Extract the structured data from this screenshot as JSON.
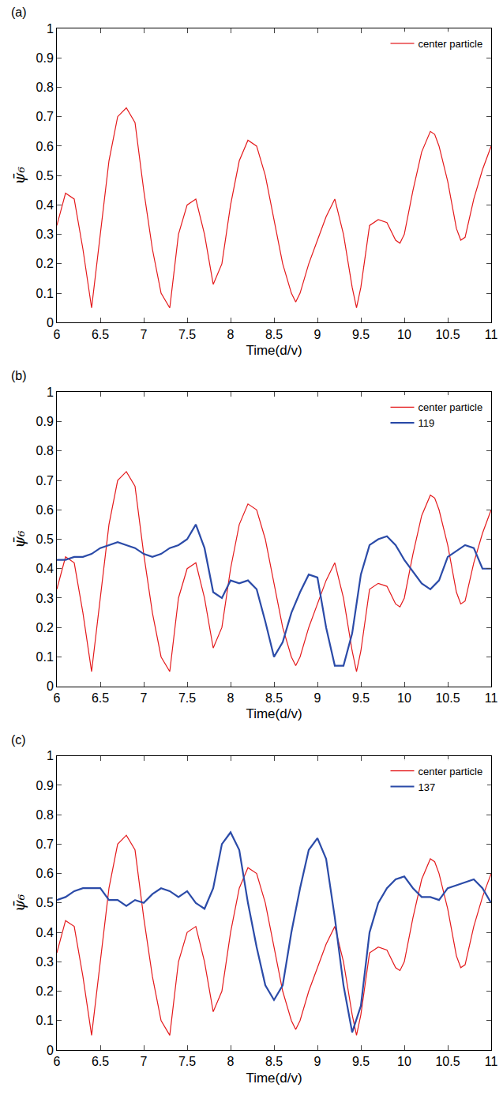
{
  "chart_data": [
    {
      "type": "line",
      "title": "(a)",
      "x_label": "Time(d/v)",
      "y_label": "ψ̄₆",
      "xlim": [
        6,
        11
      ],
      "xticks": [
        6,
        6.5,
        7,
        7.5,
        8,
        8.5,
        9,
        9.5,
        10,
        10.5,
        11
      ],
      "ylim": [
        0,
        1
      ],
      "yticks": [
        0,
        0.1,
        0.2,
        0.3,
        0.4,
        0.5,
        0.6,
        0.7,
        0.8,
        0.9,
        1
      ],
      "legend": "upper right",
      "series": [
        {
          "name": "center particle",
          "color": "#e41a1c",
          "x": [
            6.0,
            6.1,
            6.2,
            6.3,
            6.4,
            6.5,
            6.6,
            6.7,
            6.8,
            6.9,
            7.0,
            7.1,
            7.2,
            7.3,
            7.4,
            7.5,
            7.6,
            7.7,
            7.8,
            7.9,
            8.0,
            8.1,
            8.2,
            8.3,
            8.4,
            8.5,
            8.6,
            8.7,
            8.75,
            8.8,
            8.9,
            9.0,
            9.1,
            9.2,
            9.3,
            9.4,
            9.45,
            9.5,
            9.6,
            9.7,
            9.8,
            9.9,
            9.95,
            10.0,
            10.1,
            10.2,
            10.3,
            10.35,
            10.4,
            10.5,
            10.6,
            10.65,
            10.7,
            10.8,
            10.9,
            11.0
          ],
          "values": [
            0.33,
            0.44,
            0.42,
            0.25,
            0.05,
            0.3,
            0.55,
            0.7,
            0.73,
            0.68,
            0.45,
            0.25,
            0.1,
            0.05,
            0.3,
            0.4,
            0.42,
            0.3,
            0.13,
            0.2,
            0.4,
            0.55,
            0.62,
            0.6,
            0.5,
            0.35,
            0.2,
            0.1,
            0.07,
            0.1,
            0.2,
            0.28,
            0.36,
            0.42,
            0.3,
            0.12,
            0.05,
            0.12,
            0.33,
            0.35,
            0.34,
            0.28,
            0.27,
            0.3,
            0.45,
            0.58,
            0.65,
            0.64,
            0.6,
            0.48,
            0.32,
            0.28,
            0.29,
            0.42,
            0.52,
            0.6
          ]
        }
      ]
    },
    {
      "type": "line",
      "title": "(b)",
      "x_label": "Time(d/v)",
      "y_label": "ψ̄₆",
      "xlim": [
        6,
        11
      ],
      "xticks": [
        6,
        6.5,
        7,
        7.5,
        8,
        8.5,
        9,
        9.5,
        10,
        10.5,
        11
      ],
      "ylim": [
        0,
        1
      ],
      "yticks": [
        0,
        0.1,
        0.2,
        0.3,
        0.4,
        0.5,
        0.6,
        0.7,
        0.8,
        0.9,
        1
      ],
      "legend": "upper right",
      "series": [
        {
          "name": "center particle",
          "color": "#e41a1c",
          "x": [
            6.0,
            6.1,
            6.2,
            6.3,
            6.4,
            6.5,
            6.6,
            6.7,
            6.8,
            6.9,
            7.0,
            7.1,
            7.2,
            7.3,
            7.4,
            7.5,
            7.6,
            7.7,
            7.8,
            7.9,
            8.0,
            8.1,
            8.2,
            8.3,
            8.4,
            8.5,
            8.6,
            8.7,
            8.75,
            8.8,
            8.9,
            9.0,
            9.1,
            9.2,
            9.3,
            9.4,
            9.45,
            9.5,
            9.6,
            9.7,
            9.8,
            9.9,
            9.95,
            10.0,
            10.1,
            10.2,
            10.3,
            10.35,
            10.4,
            10.5,
            10.6,
            10.65,
            10.7,
            10.8,
            10.9,
            11.0
          ],
          "values": [
            0.33,
            0.44,
            0.42,
            0.25,
            0.05,
            0.3,
            0.55,
            0.7,
            0.73,
            0.68,
            0.45,
            0.25,
            0.1,
            0.05,
            0.3,
            0.4,
            0.42,
            0.3,
            0.13,
            0.2,
            0.4,
            0.55,
            0.62,
            0.6,
            0.5,
            0.35,
            0.2,
            0.1,
            0.07,
            0.1,
            0.2,
            0.28,
            0.36,
            0.42,
            0.3,
            0.12,
            0.05,
            0.12,
            0.33,
            0.35,
            0.34,
            0.28,
            0.27,
            0.3,
            0.45,
            0.58,
            0.65,
            0.64,
            0.6,
            0.48,
            0.32,
            0.28,
            0.29,
            0.42,
            0.52,
            0.6
          ]
        },
        {
          "name": "119",
          "color": "#2b4ba8",
          "x": [
            6.0,
            6.1,
            6.2,
            6.3,
            6.4,
            6.5,
            6.6,
            6.7,
            6.8,
            6.9,
            7.0,
            7.1,
            7.2,
            7.3,
            7.4,
            7.5,
            7.6,
            7.7,
            7.8,
            7.9,
            8.0,
            8.1,
            8.2,
            8.3,
            8.4,
            8.5,
            8.6,
            8.7,
            8.8,
            8.9,
            9.0,
            9.1,
            9.2,
            9.3,
            9.4,
            9.5,
            9.6,
            9.7,
            9.8,
            9.9,
            10.0,
            10.1,
            10.2,
            10.3,
            10.4,
            10.5,
            10.6,
            10.7,
            10.8,
            10.9,
            11.0
          ],
          "values": [
            0.43,
            0.43,
            0.44,
            0.44,
            0.45,
            0.47,
            0.48,
            0.49,
            0.48,
            0.47,
            0.45,
            0.44,
            0.45,
            0.47,
            0.48,
            0.5,
            0.55,
            0.47,
            0.32,
            0.3,
            0.36,
            0.35,
            0.36,
            0.33,
            0.22,
            0.1,
            0.15,
            0.25,
            0.32,
            0.38,
            0.37,
            0.2,
            0.07,
            0.07,
            0.18,
            0.38,
            0.48,
            0.5,
            0.51,
            0.48,
            0.43,
            0.39,
            0.35,
            0.33,
            0.36,
            0.44,
            0.46,
            0.48,
            0.47,
            0.4,
            0.4
          ]
        }
      ]
    },
    {
      "type": "line",
      "title": "(c)",
      "x_label": "Time(d/v)",
      "y_label": "ψ̄₆",
      "xlim": [
        6,
        11
      ],
      "xticks": [
        6,
        6.5,
        7,
        7.5,
        8,
        8.5,
        9,
        9.5,
        10,
        10.5,
        11
      ],
      "ylim": [
        0,
        1
      ],
      "yticks": [
        0,
        0.1,
        0.2,
        0.3,
        0.4,
        0.5,
        0.6,
        0.7,
        0.8,
        0.9,
        1
      ],
      "legend": "upper right",
      "series": [
        {
          "name": "center particle",
          "color": "#e41a1c",
          "x": [
            6.0,
            6.1,
            6.2,
            6.3,
            6.4,
            6.5,
            6.6,
            6.7,
            6.8,
            6.9,
            7.0,
            7.1,
            7.2,
            7.3,
            7.4,
            7.5,
            7.6,
            7.7,
            7.8,
            7.9,
            8.0,
            8.1,
            8.2,
            8.3,
            8.4,
            8.5,
            8.6,
            8.7,
            8.75,
            8.8,
            8.9,
            9.0,
            9.1,
            9.2,
            9.3,
            9.4,
            9.45,
            9.5,
            9.6,
            9.7,
            9.8,
            9.9,
            9.95,
            10.0,
            10.1,
            10.2,
            10.3,
            10.35,
            10.4,
            10.5,
            10.6,
            10.65,
            10.7,
            10.8,
            10.9,
            11.0
          ],
          "values": [
            0.33,
            0.44,
            0.42,
            0.25,
            0.05,
            0.3,
            0.55,
            0.7,
            0.73,
            0.68,
            0.45,
            0.25,
            0.1,
            0.05,
            0.3,
            0.4,
            0.42,
            0.3,
            0.13,
            0.2,
            0.4,
            0.55,
            0.62,
            0.6,
            0.5,
            0.35,
            0.2,
            0.1,
            0.07,
            0.1,
            0.2,
            0.28,
            0.36,
            0.42,
            0.3,
            0.12,
            0.05,
            0.12,
            0.33,
            0.35,
            0.34,
            0.28,
            0.27,
            0.3,
            0.45,
            0.58,
            0.65,
            0.64,
            0.6,
            0.48,
            0.32,
            0.28,
            0.29,
            0.42,
            0.52,
            0.6
          ]
        },
        {
          "name": "137",
          "color": "#2b4ba8",
          "x": [
            6.0,
            6.1,
            6.2,
            6.3,
            6.4,
            6.5,
            6.6,
            6.7,
            6.8,
            6.9,
            7.0,
            7.1,
            7.2,
            7.3,
            7.4,
            7.5,
            7.6,
            7.7,
            7.8,
            7.9,
            8.0,
            8.1,
            8.2,
            8.3,
            8.4,
            8.5,
            8.6,
            8.7,
            8.8,
            8.9,
            9.0,
            9.1,
            9.2,
            9.3,
            9.4,
            9.5,
            9.6,
            9.7,
            9.8,
            9.9,
            10.0,
            10.1,
            10.2,
            10.3,
            10.4,
            10.5,
            10.6,
            10.7,
            10.8,
            10.9,
            11.0
          ],
          "values": [
            0.51,
            0.52,
            0.54,
            0.55,
            0.55,
            0.55,
            0.51,
            0.51,
            0.49,
            0.51,
            0.5,
            0.53,
            0.55,
            0.54,
            0.52,
            0.54,
            0.5,
            0.48,
            0.55,
            0.7,
            0.74,
            0.68,
            0.5,
            0.35,
            0.22,
            0.17,
            0.22,
            0.4,
            0.55,
            0.68,
            0.72,
            0.65,
            0.45,
            0.22,
            0.06,
            0.15,
            0.4,
            0.5,
            0.55,
            0.58,
            0.59,
            0.55,
            0.52,
            0.52,
            0.51,
            0.55,
            0.56,
            0.57,
            0.58,
            0.55,
            0.5
          ]
        }
      ]
    }
  ]
}
